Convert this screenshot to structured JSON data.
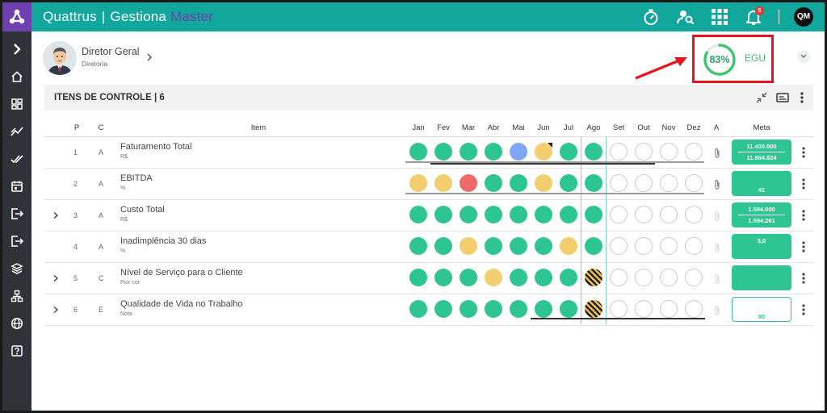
{
  "app": {
    "brand_primary": "Quattrus",
    "brand_separator": "|",
    "brand_product": "Gestiona",
    "brand_edition": "Master",
    "notifications_count": "5",
    "user_initials": "QM"
  },
  "colors": {
    "topbar": "#12a79d",
    "logo_box": "#6f3fb0",
    "sidebar": "#2f3337",
    "green": "#2fc592",
    "yellow": "#f3ce6e",
    "red": "#f06a6a",
    "blue": "#7fa6f5",
    "highlight": "#e8131b"
  },
  "top_icons": [
    "stopwatch-icon",
    "user-search-icon",
    "apps-grid-icon",
    "bell-icon"
  ],
  "sidebar_icons": [
    "chevron-right-icon",
    "home-icon",
    "dashboard-icon",
    "trend-icon",
    "double-check-icon",
    "calendar-icon",
    "logout-icon",
    "export-icon",
    "layers-icon",
    "hierarchy-icon",
    "globe-icon",
    "help-icon"
  ],
  "header": {
    "user_name": "Diretor Geral",
    "user_role": "Diretoria",
    "score_percent": 83,
    "score_text": "83%",
    "score_label": "EGU"
  },
  "section": {
    "title": "ITENS DE CONTROLE | 6"
  },
  "table": {
    "headers": {
      "p": "P",
      "c": "C",
      "item": "Item",
      "months": [
        "Jan",
        "Fev",
        "Mar",
        "Abr",
        "Mai",
        "Jun",
        "Jul",
        "Ago",
        "Set",
        "Out",
        "Nov",
        "Dez"
      ],
      "a": "A",
      "meta": "Meta"
    },
    "rows": [
      {
        "p": "1",
        "c": "A",
        "name": "Faturamento Total",
        "unit": "R$",
        "expandable": false,
        "attachment": "active",
        "months": [
          "green",
          "green",
          "green",
          "green",
          "blue",
          "yellow-flag",
          "green",
          "green",
          "empty",
          "empty",
          "empty",
          "empty"
        ],
        "meta_top": "11.400.000",
        "meta_bottom": "11.864.824",
        "meta_style": "split"
      },
      {
        "p": "2",
        "c": "A",
        "name": "EBITDA",
        "unit": "%",
        "expandable": false,
        "attachment": "active",
        "months": [
          "yellow",
          "yellow",
          "red",
          "green",
          "green",
          "yellow",
          "green",
          "green",
          "empty",
          "empty",
          "empty",
          "empty"
        ],
        "meta_top": "",
        "meta_bottom": "41",
        "meta_style": "single"
      },
      {
        "p": "3",
        "c": "A",
        "name": "Custo Total",
        "unit": "R$",
        "expandable": true,
        "attachment": "inactive",
        "months": [
          "green",
          "green",
          "green",
          "green",
          "green",
          "green",
          "green",
          "green",
          "empty",
          "empty",
          "empty",
          "empty"
        ],
        "meta_top": "1.584.000",
        "meta_bottom": "1.594.261",
        "meta_style": "split"
      },
      {
        "p": "4",
        "c": "A",
        "name": "Inadimplência 30 dias",
        "unit": "%",
        "expandable": false,
        "attachment": "inactive",
        "months": [
          "green",
          "green",
          "yellow",
          "green",
          "green",
          "green",
          "yellow",
          "green",
          "empty",
          "empty",
          "empty",
          "empty"
        ],
        "meta_top": "3,0",
        "meta_bottom": "",
        "meta_style": "single-top"
      },
      {
        "p": "5",
        "c": "C",
        "name": "Nível de Serviço para o Cliente",
        "unit": "Pior cor",
        "expandable": true,
        "attachment": "inactive",
        "months": [
          "green",
          "green",
          "green",
          "yellow",
          "green",
          "green",
          "green",
          "striped",
          "empty",
          "empty",
          "empty",
          "empty"
        ],
        "meta_top": "",
        "meta_bottom": "",
        "meta_style": "empty"
      },
      {
        "p": "6",
        "c": "E",
        "name": "Qualidade de Vida no Trabalho",
        "unit": "Nota",
        "expandable": true,
        "attachment": "inactive",
        "months": [
          "green",
          "green",
          "green",
          "green",
          "green",
          "green",
          "green",
          "striped",
          "empty",
          "empty",
          "empty",
          "empty"
        ],
        "meta_top": "",
        "meta_bottom": "90",
        "meta_style": "outline"
      }
    ]
  }
}
